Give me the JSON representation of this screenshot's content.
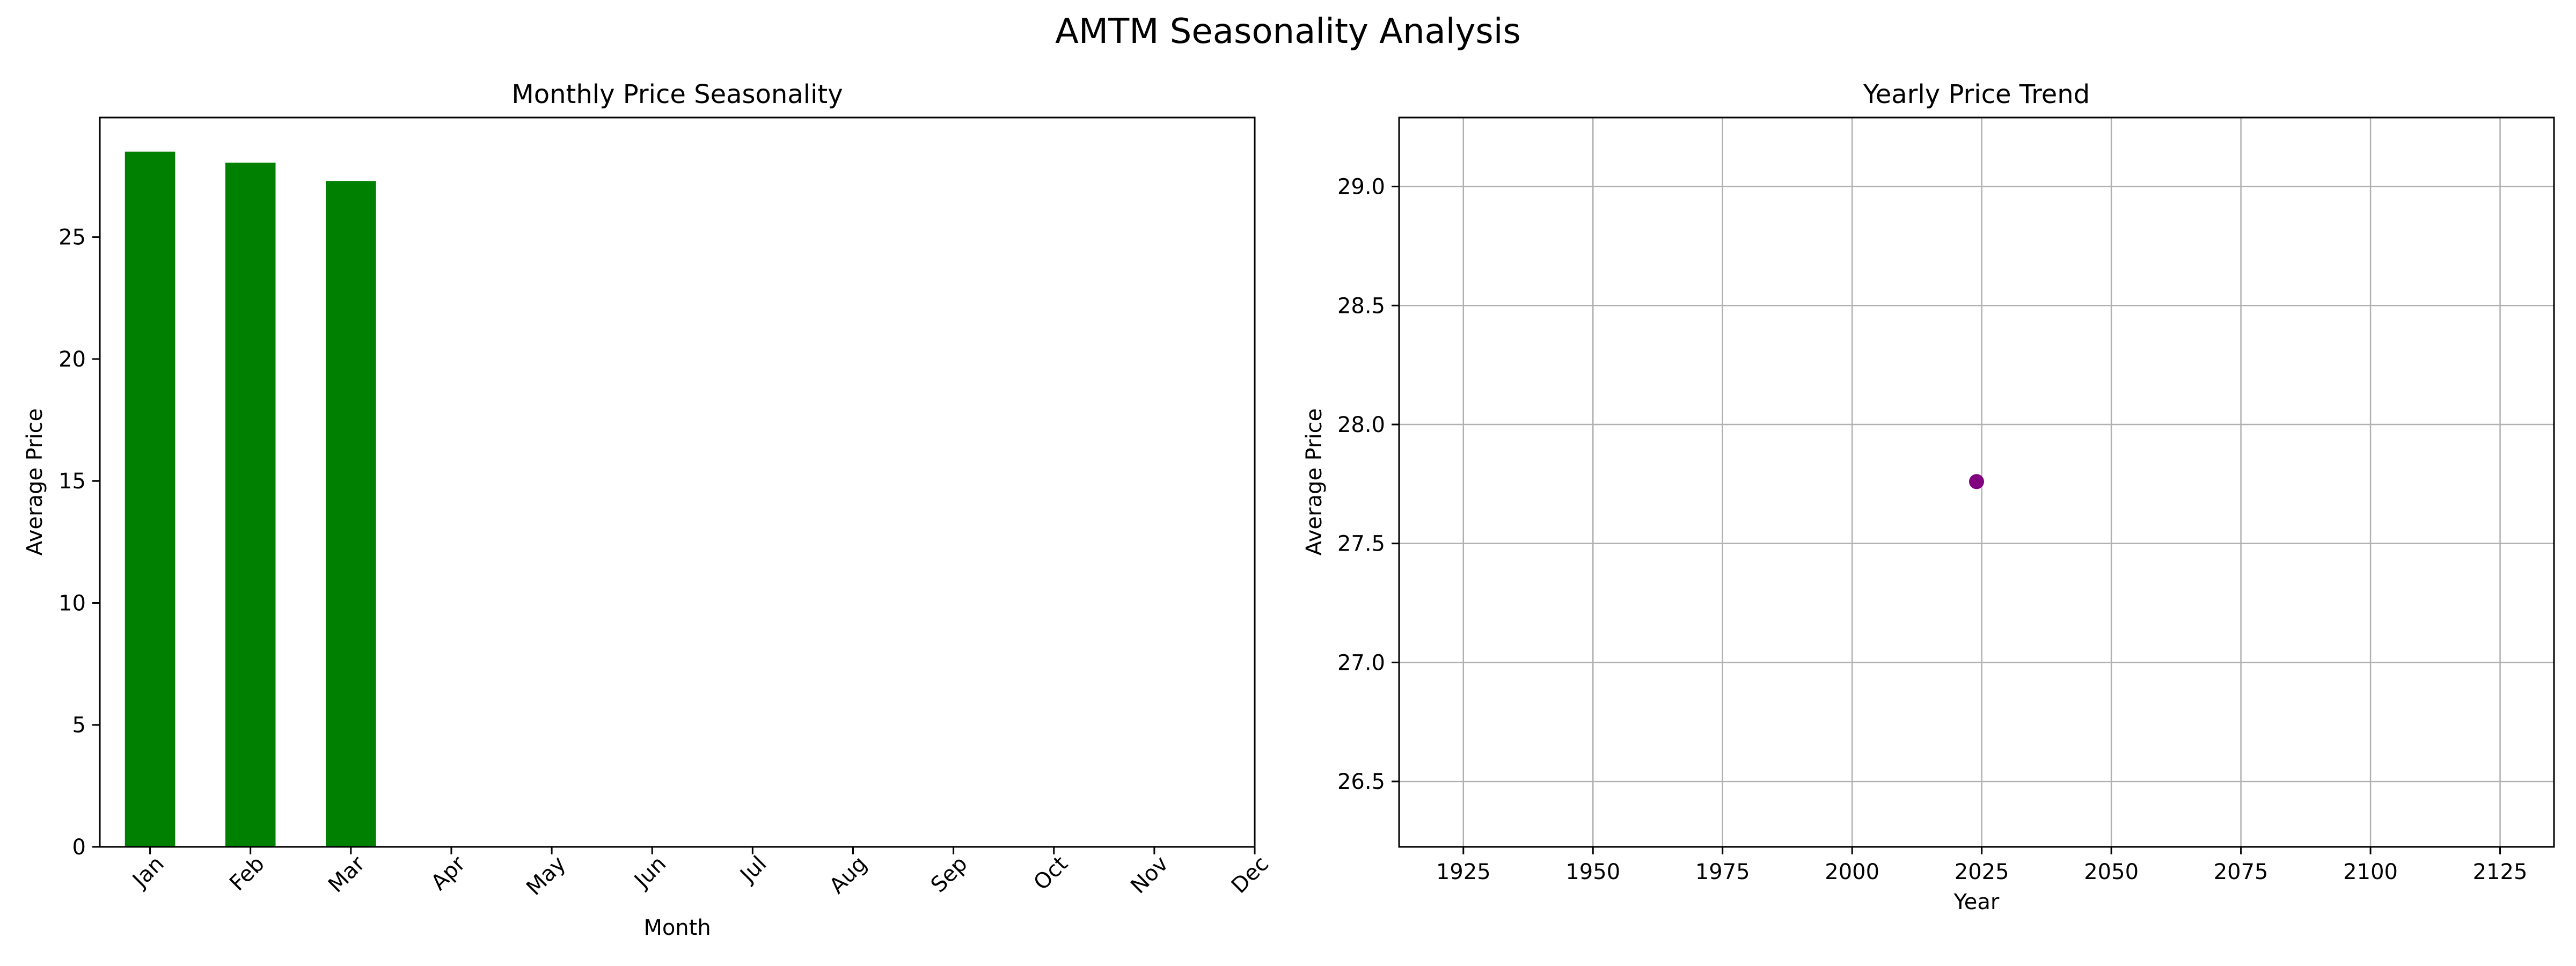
{
  "figure": {
    "suptitle": "AMTM Seasonality Analysis"
  },
  "chart_data": [
    {
      "type": "bar",
      "title": "Monthly Price Seasonality",
      "xlabel": "Month",
      "ylabel": "Average Price",
      "categories": [
        "Jan",
        "Feb",
        "Mar",
        "Apr",
        "May",
        "Jun",
        "Jul",
        "Aug",
        "Sep",
        "Oct",
        "Nov",
        "Dec"
      ],
      "values": [
        28.5,
        28.05,
        27.3,
        null,
        null,
        null,
        null,
        null,
        null,
        null,
        null,
        null
      ],
      "yticks": [
        0,
        5,
        10,
        15,
        20,
        25
      ],
      "ylim": [
        0,
        29.9
      ],
      "color": "#008000",
      "grid": false
    },
    {
      "type": "scatter",
      "title": "Yearly Price Trend",
      "xlabel": "Year",
      "ylabel": "Average Price",
      "x": [
        2024
      ],
      "y": [
        27.76
      ],
      "xticks": [
        1925,
        1950,
        1975,
        2000,
        2025,
        2050,
        2075,
        2100,
        2125
      ],
      "yticks": [
        26.5,
        27.0,
        27.5,
        28.0,
        28.5,
        29.0
      ],
      "ytick_labels": [
        "26.5",
        "27.0",
        "27.5",
        "28.0",
        "28.5",
        "29.0"
      ],
      "xlim": [
        1912.6,
        2135.4
      ],
      "ylim": [
        26.225,
        29.29
      ],
      "color": "#800080",
      "grid": true
    }
  ]
}
